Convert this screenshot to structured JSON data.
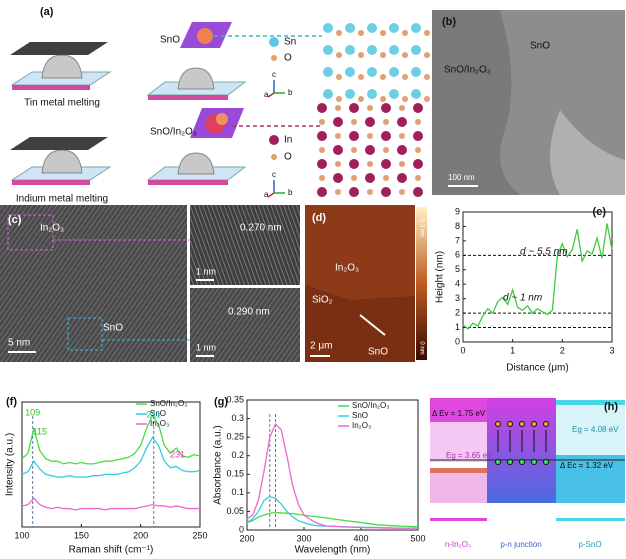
{
  "panel_a": {
    "label": "(a)",
    "tin": "Tin metal melting",
    "indium": "Indium metal melting",
    "sno": "SnO",
    "sno_in2o3": "SnO/In₂O₃",
    "legend_top": [
      "Sn",
      "O"
    ],
    "legend_bottom": [
      "In",
      "O"
    ],
    "axes": [
      "c",
      "a",
      "b"
    ]
  },
  "panel_b": {
    "label": "(b)",
    "sno": "SnO",
    "sno_in2o3": "SnO/In₂O₃",
    "scale": "100 nm"
  },
  "panel_c": {
    "label": "(c)",
    "in2o3": "In₂O₃",
    "sno": "SnO",
    "scale": "5 nm",
    "d1": "0.270 nm",
    "scale1": "1 nm",
    "d2": "0.290 nm",
    "scale2": "1 nm"
  },
  "panel_d": {
    "label": "(d)",
    "in2o3": "In₂O₃",
    "sio2": "SiO₂",
    "sno": "SnO",
    "scale": "2 μm",
    "cmax": "5.3 nm",
    "cmin": "0 nm"
  },
  "panel_h": {
    "label": "(h)",
    "dev": "Δ Ev = 1.75 eV",
    "eg1": "Eg = 3.65 eV",
    "eg2": "Eg = 4.08 eV",
    "dec": "Δ Ec = 1.32 eV",
    "n": "n-In₂O₃",
    "pn": "p-n junction",
    "p": "p-SnO"
  },
  "chart_data": [
    {
      "type": "line",
      "label": "(e)",
      "xlabel": "Distance (μm)",
      "ylabel": "Height (nm)",
      "x": [
        0,
        0.1,
        0.2,
        0.3,
        0.4,
        0.5,
        0.6,
        0.7,
        0.8,
        0.9,
        1.0,
        1.1,
        1.2,
        1.3,
        1.4,
        1.5,
        1.6,
        1.7,
        1.8,
        1.9,
        2.0,
        2.1,
        2.2,
        2.3,
        2.4,
        2.5,
        2.6,
        2.7,
        2.8,
        2.9,
        3.0
      ],
      "values": [
        1.2,
        0.9,
        1.3,
        1.1,
        1.8,
        2.3,
        2.0,
        2.8,
        3.1,
        2.6,
        3.6,
        2.4,
        2.2,
        2.5,
        2.0,
        2.3,
        2.1,
        1.9,
        2.2,
        6.0,
        6.8,
        5.9,
        6.4,
        7.8,
        5.6,
        6.3,
        6.1,
        7.2,
        5.8,
        8.2,
        6.4
      ],
      "color": "#3ccc3c",
      "xlim": [
        0,
        3
      ],
      "ylim": [
        0,
        9
      ],
      "xticks": [
        0,
        1,
        2,
        3
      ],
      "yticks": [
        0,
        1,
        2,
        3,
        4,
        5,
        6,
        7,
        8,
        9
      ],
      "hlines": [
        1,
        2,
        6
      ],
      "annotations": [
        {
          "text": "d ~ 5.5 nm"
        },
        {
          "text": "d ~ 1 nm"
        }
      ]
    },
    {
      "type": "line",
      "label": "(f)",
      "xlabel": "Raman shift (cm⁻¹)",
      "ylabel": "Intensity (a.u.)",
      "x": [
        100,
        105,
        110,
        115,
        120,
        125,
        130,
        135,
        140,
        145,
        150,
        155,
        160,
        165,
        170,
        175,
        180,
        185,
        190,
        195,
        200,
        205,
        210,
        215,
        220,
        225,
        230,
        235,
        240,
        245,
        250
      ],
      "series": [
        {
          "name": "SnO/In₂O₃",
          "color": "#44dd44",
          "values": [
            0.62,
            0.66,
            0.85,
            0.68,
            0.62,
            0.6,
            0.6,
            0.58,
            0.59,
            0.58,
            0.59,
            0.58,
            0.58,
            0.59,
            0.6,
            0.6,
            0.61,
            0.62,
            0.63,
            0.66,
            0.72,
            0.85,
            0.95,
            0.88,
            0.72,
            0.66,
            0.7,
            0.64,
            0.63,
            0.65,
            0.64
          ]
        },
        {
          "name": "SnO",
          "color": "#33ccdd",
          "values": [
            0.5,
            0.52,
            0.6,
            0.54,
            0.5,
            0.49,
            0.48,
            0.48,
            0.49,
            0.48,
            0.48,
            0.48,
            0.49,
            0.49,
            0.5,
            0.5,
            0.5,
            0.51,
            0.52,
            0.55,
            0.6,
            0.7,
            0.78,
            0.72,
            0.6,
            0.55,
            0.56,
            0.53,
            0.52,
            0.52,
            0.53
          ]
        },
        {
          "name": "In₂O₃",
          "color": "#ee66cc",
          "values": [
            0.26,
            0.27,
            0.32,
            0.27,
            0.25,
            0.24,
            0.25,
            0.24,
            0.24,
            0.23,
            0.24,
            0.24,
            0.24,
            0.24,
            0.23,
            0.24,
            0.24,
            0.24,
            0.24,
            0.24,
            0.25,
            0.26,
            0.27,
            0.26,
            0.26,
            0.25,
            0.26,
            0.25,
            0.24,
            0.24,
            0.24
          ]
        }
      ],
      "xlim": [
        100,
        250
      ],
      "ylim": [
        0.1,
        1.05
      ],
      "xticks": [
        100,
        150,
        200,
        250
      ],
      "vlines": [
        109,
        211
      ],
      "annotations": [
        {
          "text": "109",
          "x": 109,
          "color": "#33bb33"
        },
        {
          "text": "115",
          "x": 115,
          "color": "#33bb33"
        },
        {
          "text": "211",
          "x": 211,
          "color": "#22bbbb"
        },
        {
          "text": "231",
          "x": 231,
          "color": "#dd44aa"
        }
      ]
    },
    {
      "type": "line",
      "label": "(g)",
      "xlabel": "Wavelength (nm)",
      "ylabel": "Absorbance (a.u.)",
      "x": [
        200,
        210,
        220,
        230,
        240,
        250,
        260,
        270,
        280,
        290,
        300,
        310,
        320,
        330,
        340,
        350,
        360,
        370,
        380,
        390,
        400,
        410,
        420,
        430,
        440,
        450,
        460,
        470,
        480,
        490,
        500
      ],
      "series": [
        {
          "name": "SnO/In₂O₃",
          "color": "#44dd44",
          "values": [
            0.02,
            0.025,
            0.035,
            0.04,
            0.045,
            0.047,
            0.046,
            0.045,
            0.044,
            0.042,
            0.04,
            0.038,
            0.036,
            0.034,
            0.032,
            0.03,
            0.028,
            0.026,
            0.024,
            0.022,
            0.02,
            0.018,
            0.016,
            0.014,
            0.013,
            0.012,
            0.011,
            0.01,
            0.01,
            0.009,
            0.009
          ]
        },
        {
          "name": "SnO",
          "color": "#33ccdd",
          "values": [
            0.02,
            0.03,
            0.05,
            0.08,
            0.09,
            0.085,
            0.07,
            0.05,
            0.035,
            0.025,
            0.02,
            0.015,
            0.012,
            0.011,
            0.01,
            0.01,
            0.009,
            0.009,
            0.008,
            0.008,
            0.007,
            0.007,
            0.007,
            0.006,
            0.006,
            0.006,
            0.005,
            0.005,
            0.005,
            0.005,
            0.005
          ]
        },
        {
          "name": "In₂O₃",
          "color": "#ee66cc",
          "values": [
            0.03,
            0.04,
            0.08,
            0.16,
            0.25,
            0.285,
            0.27,
            0.2,
            0.12,
            0.07,
            0.04,
            0.03,
            0.02,
            0.015,
            0.01,
            0.01,
            0.009,
            0.008,
            0.008,
            0.007,
            0.007,
            0.006,
            0.006,
            0.006,
            0.005,
            0.005,
            0.005,
            0.005,
            0.005,
            0.005,
            0.005
          ]
        }
      ],
      "xlim": [
        200,
        500
      ],
      "ylim": [
        0,
        0.35
      ],
      "xticks": [
        200,
        300,
        400,
        500
      ],
      "yticks": [
        0,
        0.05,
        0.1,
        0.15,
        0.2,
        0.25,
        0.3,
        0.35
      ],
      "vlines": [
        240,
        250
      ]
    }
  ]
}
